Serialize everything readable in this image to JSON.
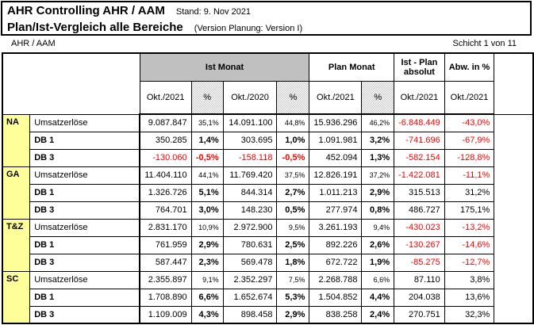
{
  "header": {
    "title": "AHR Controlling AHR / AAM",
    "stand": "Stand: 9. Nov 2021",
    "subtitle": "Plan/Ist-Vergleich alle Bereiche",
    "version": "(Version Planung: Version I)",
    "scope": "AHR / AAM",
    "page_indicator": "Schicht 1 von 11"
  },
  "table": {
    "groups": [
      {
        "label": "Ist Monat"
      },
      {
        "label": "Plan Monat"
      },
      {
        "label": "Ist - Plan absolut"
      },
      {
        "label": "Abw. in %"
      }
    ],
    "subheaders": [
      {
        "label": "Okt./2021",
        "hatch": false
      },
      {
        "label": "%",
        "hatch": true
      },
      {
        "label": "Okt./2020",
        "hatch": false
      },
      {
        "label": "%",
        "hatch": true
      },
      {
        "label": "Okt./2021",
        "hatch": false
      },
      {
        "label": "%",
        "hatch": true
      },
      {
        "label": "Okt./2021",
        "hatch": false
      },
      {
        "label": "Okt./2021",
        "hatch": false
      }
    ],
    "sections": [
      {
        "name": "NA",
        "rows": [
          {
            "label": "Umsatzerlöse",
            "type": "umsatz",
            "cells": [
              "9.087.847",
              "35,1%",
              "14.091.100",
              "44,8%",
              "15.936.296",
              "46,2%",
              "-6.848.449",
              "-43,0%"
            ]
          },
          {
            "label": "DB 1",
            "type": "db",
            "cells": [
              "350.285",
              "1,4%",
              "303.695",
              "1,0%",
              "1.091.981",
              "3,2%",
              "-741.696",
              "-67,9%"
            ]
          },
          {
            "label": "DB 3",
            "type": "db",
            "cells": [
              "-130.060",
              "-0,5%",
              "-158.118",
              "-0,5%",
              "452.094",
              "1,3%",
              "-582.154",
              "-128,8%"
            ]
          }
        ]
      },
      {
        "name": "GA",
        "rows": [
          {
            "label": "Umsatzerlöse",
            "type": "umsatz",
            "cells": [
              "11.404.110",
              "44,1%",
              "11.769.420",
              "37,5%",
              "12.826.191",
              "37,2%",
              "-1.422.081",
              "-11,1%"
            ]
          },
          {
            "label": "DB 1",
            "type": "db",
            "cells": [
              "1.326.726",
              "5,1%",
              "844.314",
              "2,7%",
              "1.011.213",
              "2,9%",
              "315.513",
              "31,2%"
            ]
          },
          {
            "label": "DB 3",
            "type": "db",
            "cells": [
              "764.701",
              "3,0%",
              "148.230",
              "0,5%",
              "277.974",
              "0,8%",
              "486.727",
              "175,1%"
            ]
          }
        ]
      },
      {
        "name": "T&Z",
        "rows": [
          {
            "label": "Umsatzerlöse",
            "type": "umsatz",
            "cells": [
              "2.831.170",
              "10,9%",
              "2.972.900",
              "9,5%",
              "3.261.193",
              "9,4%",
              "-430.023",
              "-13,2%"
            ]
          },
          {
            "label": "DB 1",
            "type": "db",
            "cells": [
              "761.959",
              "2,9%",
              "780.631",
              "2,5%",
              "892.226",
              "2,6%",
              "-130.267",
              "-14,6%"
            ]
          },
          {
            "label": "DB 3",
            "type": "db",
            "cells": [
              "587.447",
              "2,3%",
              "569.478",
              "1,8%",
              "672.722",
              "1,9%",
              "-85.275",
              "-12,7%"
            ]
          }
        ]
      },
      {
        "name": "SC",
        "rows": [
          {
            "label": "Umsatzerlöse",
            "type": "umsatz",
            "cells": [
              "2.355.897",
              "9,1%",
              "2.352.297",
              "7,5%",
              "2.268.788",
              "6,6%",
              "87.110",
              "3,8%"
            ]
          },
          {
            "label": "DB 1",
            "type": "db",
            "cells": [
              "1.708.890",
              "6,6%",
              "1.652.674",
              "5,3%",
              "1.504.852",
              "4,4%",
              "204.038",
              "13,6%"
            ]
          },
          {
            "label": "DB 3",
            "type": "db",
            "cells": [
              "1.109.009",
              "4,3%",
              "898.458",
              "2,9%",
              "838.258",
              "2,4%",
              "270.751",
              "32,3%"
            ]
          }
        ]
      }
    ],
    "colors": {
      "section_yellow": "#ffff99",
      "header_gray": "#c0c0c0",
      "negative_red": "#ff0000"
    }
  }
}
